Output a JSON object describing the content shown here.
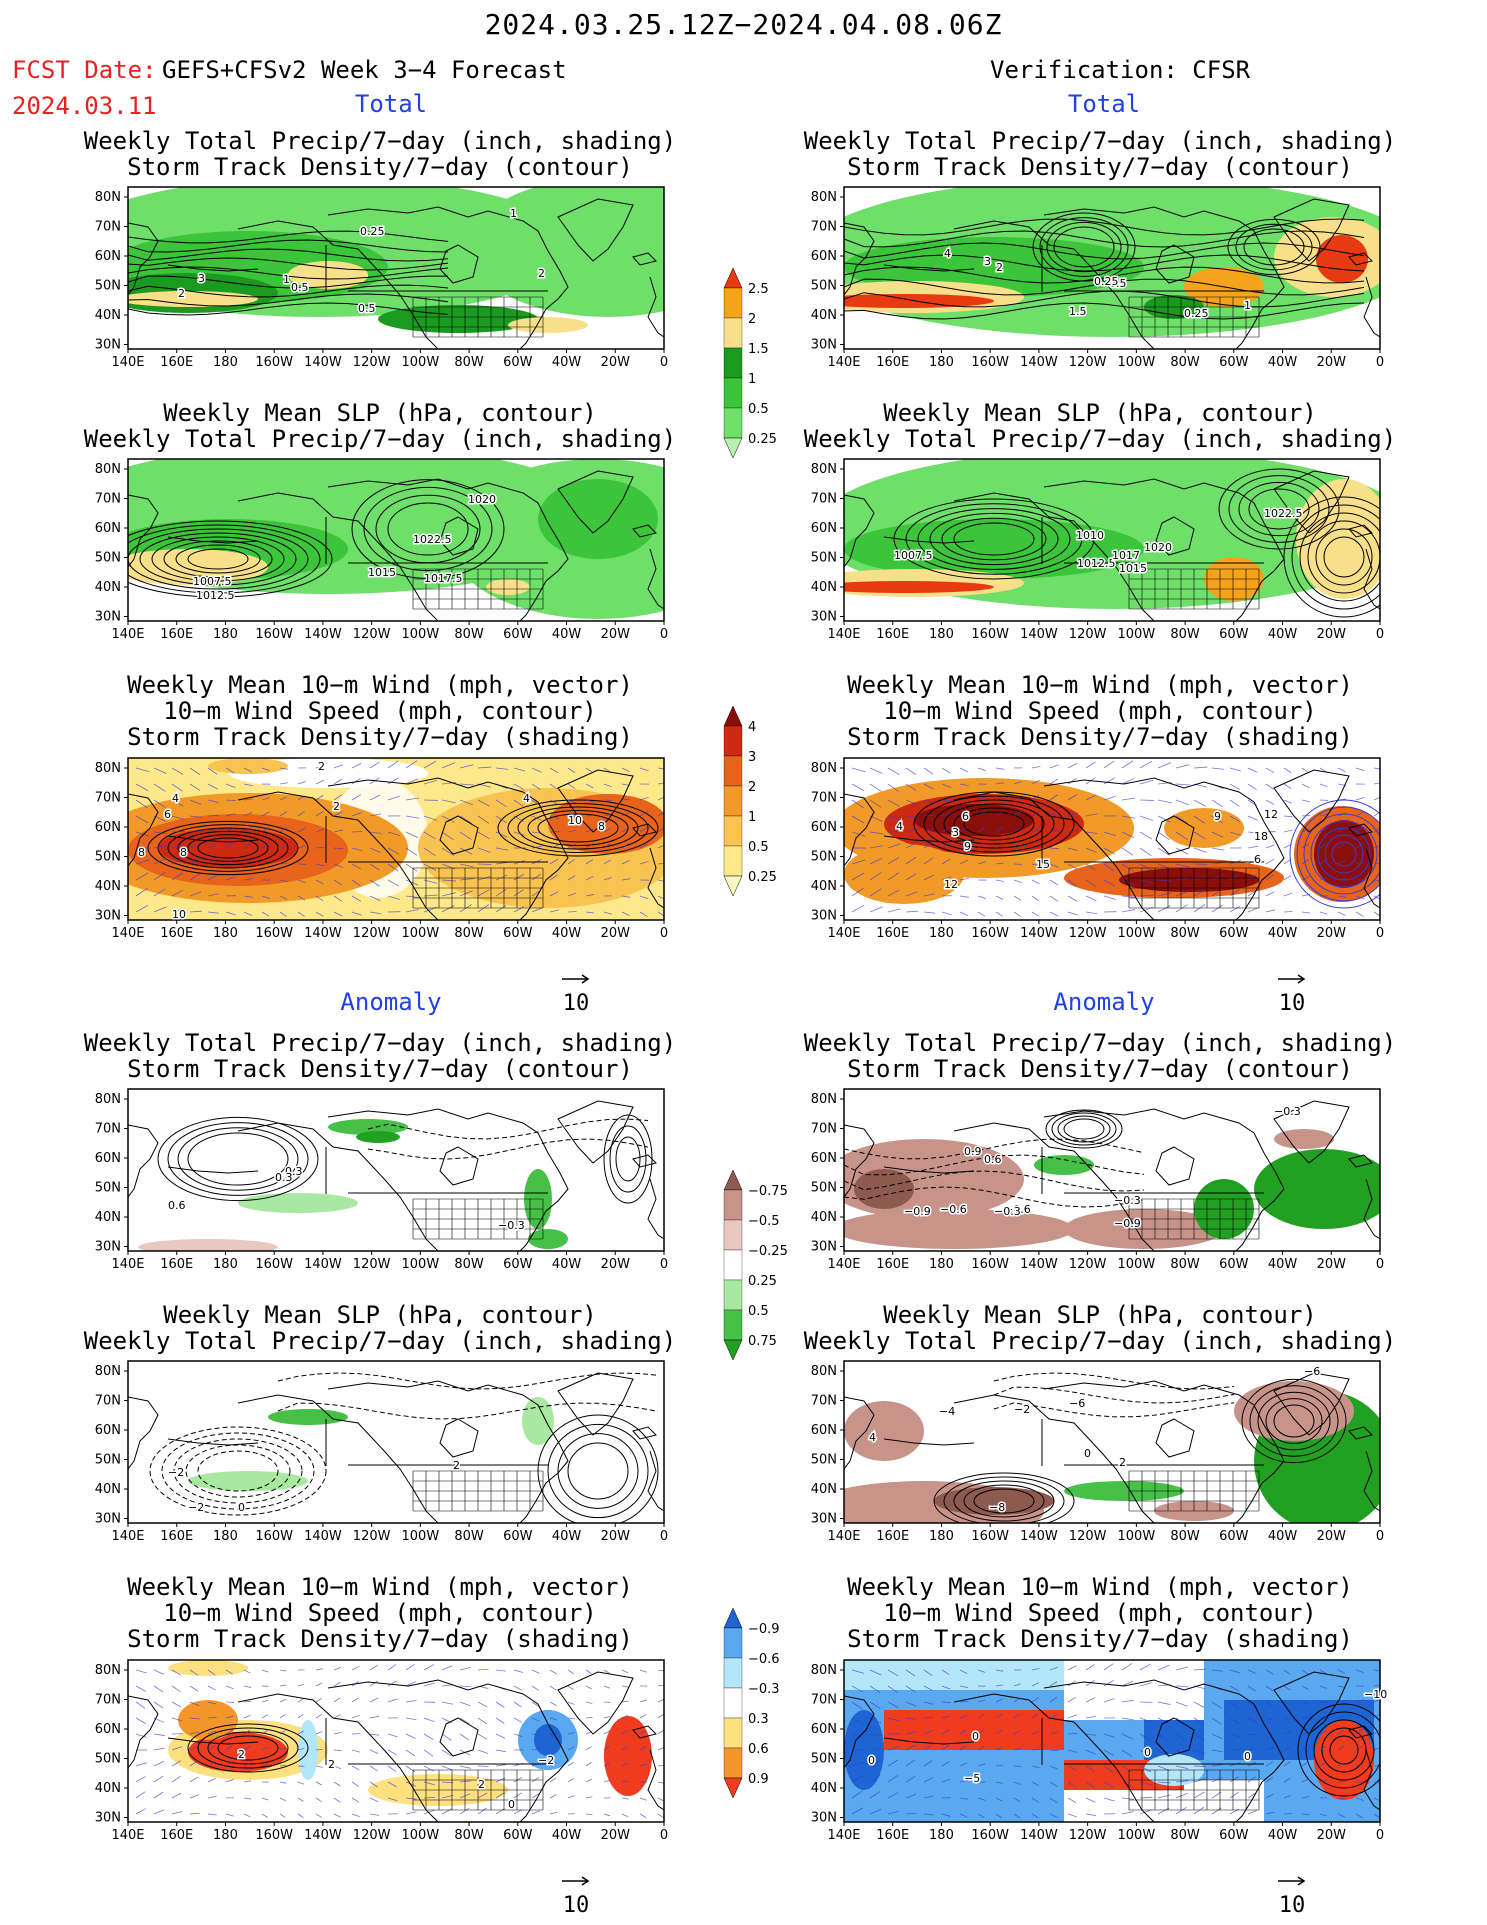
{
  "title": "2024.03.25.12Z−2024.04.08.06Z",
  "forecast": {
    "label": "FCST Date:",
    "model": "GEFS+CFSv2 Week 3−4 Forecast",
    "date": "2024.03.11"
  },
  "verification": "Verification: CFSR",
  "sections": {
    "total": "Total",
    "anomaly": "Anomaly"
  },
  "panel_titles": {
    "precip_storm": [
      "Weekly Total Precip/7−day (inch, shading)",
      "Storm Track Density/7−day (contour)"
    ],
    "slp_precip": [
      "Weekly Mean SLP (hPa, contour)",
      "Weekly Total Precip/7−day (inch, shading)"
    ],
    "wind_storm": [
      "Weekly Mean 10−m Wind (mph, vector)",
      "10−m Wind Speed (mph, contour)",
      "Storm Track Density/7−day (shading)"
    ]
  },
  "map_axes": {
    "lat_labels": [
      "80N",
      "70N",
      "60N",
      "50N",
      "40N",
      "30N"
    ],
    "lon_labels": [
      "140E",
      "160E",
      "180",
      "160W",
      "140W",
      "120W",
      "100W",
      "80W",
      "60W",
      "40W",
      "20W",
      "0"
    ]
  },
  "vector_key": "10",
  "colorbars": {
    "precip_total": {
      "labels": [
        "0.25",
        "0.5",
        "1",
        "1.5",
        "2",
        "2.5"
      ],
      "colors": [
        "#b8f0b0",
        "#6ee06a",
        "#3cc43a",
        "#1a9a1e",
        "#f8e08a",
        "#f5a31a",
        "#e83a10"
      ]
    },
    "storm_total": {
      "labels": [
        "0.25",
        "0.5",
        "1",
        "2",
        "3",
        "4"
      ],
      "colors": [
        "#fdf6c0",
        "#fde88a",
        "#f8c350",
        "#f29a28",
        "#e8641a",
        "#cc2a12",
        "#8a0f0a"
      ]
    },
    "precip_anom": {
      "labels": [
        "0.75",
        "0.5",
        "0.25",
        "−0.25",
        "−0.5",
        "−0.75"
      ],
      "colors": [
        "#22a022",
        "#46c046",
        "#a8e8a0",
        "#ffffff",
        "#e8c8c0",
        "#c8948a",
        "#8c5a4e"
      ]
    },
    "storm_anom": {
      "labels": [
        "0.9",
        "0.6",
        "0.3",
        "−0.3",
        "−0.6",
        "−0.9"
      ],
      "colors": [
        "#f03c1e",
        "#f5962a",
        "#fde080",
        "#ffffff",
        "#b4e6fa",
        "#5aa8f0",
        "#1e64d2"
      ]
    }
  },
  "contour_labels": {
    "tl1": [
      "3",
      "2",
      "1",
      "0.5",
      "0.25",
      "0.5",
      "2",
      "1"
    ],
    "tr1": [
      "4",
      "3",
      "2",
      "0.5",
      "0.25",
      "1.5",
      "0.25",
      "1"
    ],
    "tl2": [
      "1007.5",
      "1012.5",
      "1015",
      "1017.5",
      "1022.5",
      "1020"
    ],
    "tr2": [
      "1007.5",
      "1010",
      "1012.5",
      "1015",
      "1017",
      "1020",
      "1022.5"
    ],
    "tl3": [
      "4",
      "6",
      "8",
      "8",
      "10",
      "2",
      "2",
      "4",
      "10",
      "8"
    ],
    "tr3": [
      "6",
      "3",
      "9",
      "4",
      "15",
      "12",
      "9",
      "12",
      "18",
      "6"
    ],
    "al1": [
      "0.3",
      "0.6",
      "0.3",
      "−0.3"
    ],
    "ar1": [
      "−0.3",
      "−0.6",
      "−0.9",
      "−0.6",
      "−0.3",
      "−0.9",
      "0.9",
      "0.6",
      "−0.3"
    ],
    "al2": [
      "2",
      "−2",
      "0",
      "−2"
    ],
    "ar2": [
      "−4",
      "−2",
      "−6",
      "4",
      "−8",
      "0",
      "2",
      "−6"
    ],
    "al3": [
      "2",
      "2",
      "−2",
      "2",
      "0"
    ],
    "ar3": [
      "0",
      "−5",
      "0",
      "0",
      "0",
      "−10"
    ]
  }
}
